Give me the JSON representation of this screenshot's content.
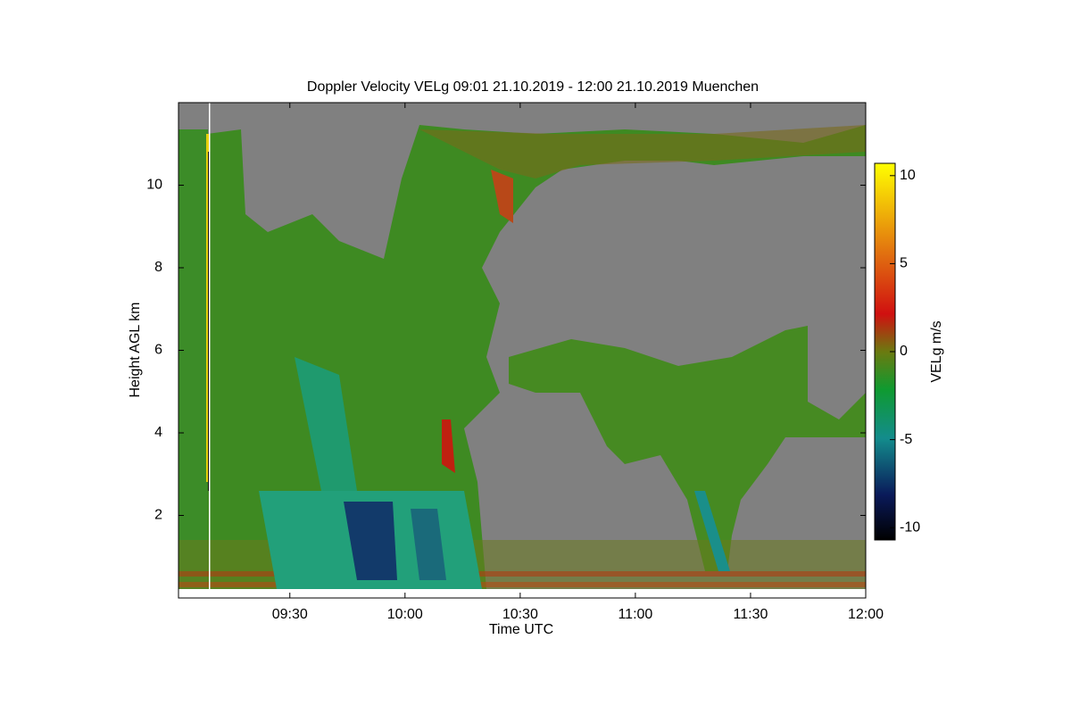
{
  "chart_data": {
    "type": "heatmap",
    "title": "Doppler Velocity VELg   09:01 21.10.2019 - 12:00 21.10.2019 Muenchen",
    "x_label": "Time UTC",
    "y_label": "Height AGL km",
    "xlim": [
      541,
      720
    ],
    "xticks": [
      {
        "value": 570,
        "label": "09:30"
      },
      {
        "value": 600,
        "label": "10:00"
      },
      {
        "value": 630,
        "label": "10:30"
      },
      {
        "value": 660,
        "label": "11:00"
      },
      {
        "value": 690,
        "label": "11:30"
      },
      {
        "value": 720,
        "label": "12:00"
      }
    ],
    "ylim": [
      0,
      12
    ],
    "yticks": [
      2,
      4,
      6,
      8,
      10
    ],
    "colorbar_label": "VELg m/s",
    "zlim": [
      -10.7,
      10.7
    ],
    "zticks": [
      10,
      5,
      0,
      -5,
      -10
    ]
  }
}
